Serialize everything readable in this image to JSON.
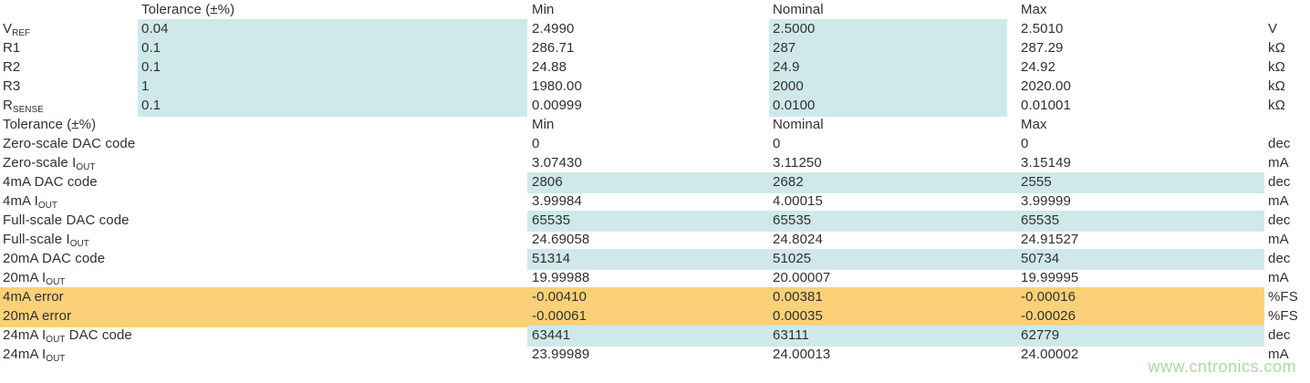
{
  "colors": {
    "highlight_cyan": "#cfe9ea",
    "highlight_orange": "#fad178",
    "text": "#303030",
    "watermark_green": "#a3d59a",
    "background": "#ffffff"
  },
  "watermark": "www.cntronics.com",
  "headers": {
    "tolerance": "Tolerance (±%)",
    "min": "Min",
    "nominal": "Nominal",
    "max": "Max"
  },
  "rows": [
    {
      "pre": "",
      "sub": "",
      "post": "",
      "tol": "Tolerance (±%)",
      "min": "Min",
      "nom": "Nominal",
      "max": "Max",
      "unit": ""
    },
    {
      "pre": "V",
      "sub": "REF",
      "post": "",
      "tol": "0.04",
      "min": "2.4990",
      "nom": "2.5000",
      "max": "2.5010",
      "unit": "V"
    },
    {
      "pre": "R1",
      "sub": "",
      "post": "",
      "tol": "0.1",
      "min": "286.71",
      "nom": "287",
      "max": "287.29",
      "unit": "kΩ"
    },
    {
      "pre": "R2",
      "sub": "",
      "post": "",
      "tol": "0.1",
      "min": "24.88",
      "nom": "24.9",
      "max": "24.92",
      "unit": "kΩ"
    },
    {
      "pre": "R3",
      "sub": "",
      "post": "",
      "tol": "1",
      "min": "1980.00",
      "nom": "2000",
      "max": "2020.00",
      "unit": "kΩ"
    },
    {
      "pre": "R",
      "sub": "SENSE",
      "post": "",
      "tol": "0.1",
      "min": "0.00999",
      "nom": "0.0100",
      "max": "0.01001",
      "unit": "kΩ"
    },
    {
      "pre": "Tolerance (±%)",
      "sub": "",
      "post": "",
      "tol": "",
      "min": "Min",
      "nom": "Nominal",
      "max": "Max",
      "unit": ""
    },
    {
      "pre": "Zero-scale DAC code",
      "sub": "",
      "post": "",
      "tol": "",
      "min": "0",
      "nom": "0",
      "max": "0",
      "unit": "dec"
    },
    {
      "pre": "Zero-scale I",
      "sub": "OUT",
      "post": "",
      "tol": "",
      "min": "3.07430",
      "nom": "3.11250",
      "max": "3.15149",
      "unit": "mA"
    },
    {
      "pre": "4mA DAC code",
      "sub": "",
      "post": "",
      "tol": "",
      "min": "2806",
      "nom": "2682",
      "max": "2555",
      "unit": "dec"
    },
    {
      "pre": "4mA I",
      "sub": "OUT",
      "post": "",
      "tol": "",
      "min": "3.99984",
      "nom": "4.00015",
      "max": "3.99999",
      "unit": "mA"
    },
    {
      "pre": "Full-scale DAC code",
      "sub": "",
      "post": "",
      "tol": "",
      "min": "65535",
      "nom": "65535",
      "max": "65535",
      "unit": "dec"
    },
    {
      "pre": "Full-scale I",
      "sub": "OUT",
      "post": "",
      "tol": "",
      "min": "24.69058",
      "nom": "24.8024",
      "max": "24.91527",
      "unit": "mA"
    },
    {
      "pre": "20mA DAC code",
      "sub": "",
      "post": "",
      "tol": "",
      "min": "51314",
      "nom": "51025",
      "max": "50734",
      "unit": "dec"
    },
    {
      "pre": "20mA I",
      "sub": "OUT",
      "post": "",
      "tol": "",
      "min": "19.99988",
      "nom": "20.00007",
      "max": "19.99995",
      "unit": "mA"
    },
    {
      "pre": "4mA error",
      "sub": "",
      "post": "",
      "tol": "",
      "min": "-0.00410",
      "nom": "0.00381",
      "max": "-0.00016",
      "unit": "%FS"
    },
    {
      "pre": "20mA error",
      "sub": "",
      "post": "",
      "tol": "",
      "min": "-0.00061",
      "nom": "0.00035",
      "max": "-0.00026",
      "unit": "%FS"
    },
    {
      "pre": "24mA I",
      "sub": "OUT",
      "post": " DAC code",
      "tol": "",
      "min": "63441",
      "nom": "63111",
      "max": "62779",
      "unit": "dec"
    },
    {
      "pre": "24mA I",
      "sub": "OUT",
      "post": "",
      "tol": "",
      "min": "23.99989",
      "nom": "24.00013",
      "max": "24.00002",
      "unit": "mA"
    }
  ]
}
